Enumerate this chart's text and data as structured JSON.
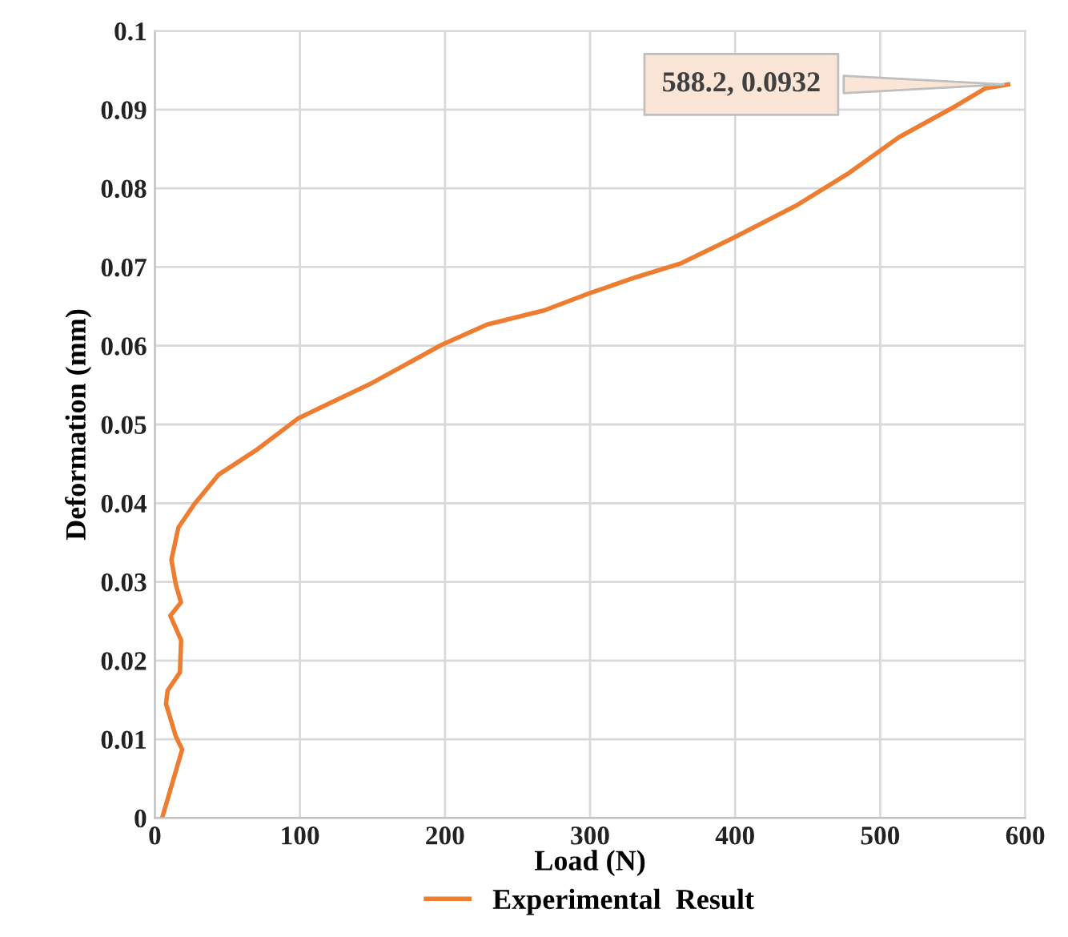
{
  "chart_data": {
    "type": "line",
    "xlabel": "Load (N)",
    "ylabel": "Deformation (mm)",
    "xlim": [
      0,
      600
    ],
    "xticks": [
      0,
      100,
      200,
      300,
      400,
      500,
      600
    ],
    "ylim": [
      0,
      0.1
    ],
    "yticks": [
      0,
      0.01,
      0.02,
      0.03,
      0.04,
      0.05,
      0.06,
      0.07,
      0.08,
      0.09,
      0.1
    ],
    "grid": true,
    "legend": "bottom",
    "marker": "none",
    "line_style": "solid",
    "annotations": [
      {
        "text": "588.2, 0.0932",
        "x": 588.2,
        "y": 0.0932
      }
    ],
    "series": [
      {
        "name": "Experimental  Result",
        "color": "#ed7d31",
        "x": [
          5,
          18.8,
          14.4,
          7.7,
          8.8,
          17.3,
          18.1,
          10.7,
          18,
          14.4,
          11.4,
          16.2,
          27.3,
          43.8,
          69.6,
          99,
          150,
          197.5,
          229,
          268.5,
          300,
          331.5,
          363,
          398.8,
          442,
          477.3,
          513,
          552.5,
          572.4,
          588.2
        ],
        "values": [
          0,
          0.0087,
          0.0104,
          0.0145,
          0.0162,
          0.0185,
          0.0226,
          0.0257,
          0.0274,
          0.0297,
          0.0328,
          0.0369,
          0.0399,
          0.0436,
          0.0467,
          0.0508,
          0.0553,
          0.0601,
          0.0627,
          0.0645,
          0.0667,
          0.0687,
          0.0705,
          0.0737,
          0.0778,
          0.0818,
          0.0865,
          0.0905,
          0.0927,
          0.0932
        ]
      }
    ]
  }
}
